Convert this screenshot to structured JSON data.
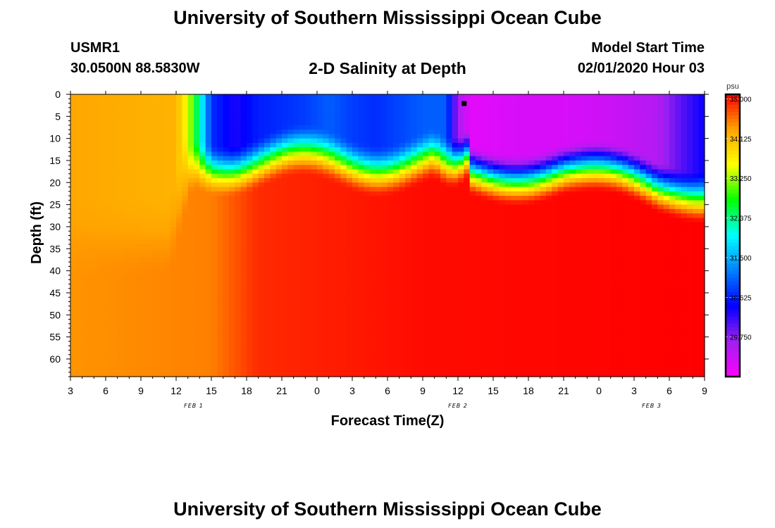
{
  "header": {
    "title": "University of Southern Mississippi Ocean Cube",
    "station_id": "USMR1",
    "coords": "30.0500N 88.5830W",
    "plot_title": "2-D Salinity at Depth",
    "model_label": "Model Start Time",
    "model_time": "02/01/2020 Hour 03"
  },
  "footer": {
    "title": "University of Southern Mississippi Ocean Cube"
  },
  "chart_data": {
    "type": "heatmap",
    "title": "2-D Salinity at Depth",
    "xlabel": "Forecast Time(Z)",
    "ylabel": "Depth (ft)",
    "x_ticks": [
      "3",
      "6",
      "9",
      "12",
      "15",
      "18",
      "21",
      "0",
      "3",
      "6",
      "9",
      "12",
      "15",
      "18",
      "21",
      "0",
      "3",
      "6",
      "9"
    ],
    "day_labels": [
      {
        "label": "FEB 1",
        "tick_index": 3.5
      },
      {
        "label": "FEB 2",
        "tick_index": 11
      },
      {
        "label": "FEB 3",
        "tick_index": 16.5
      }
    ],
    "y_ticks": [
      "0",
      "5",
      "10",
      "15",
      "20",
      "25",
      "30",
      "35",
      "40",
      "45",
      "50",
      "55",
      "60"
    ],
    "ylim": [
      0,
      64
    ],
    "forecast_hours": [
      0,
      54
    ],
    "colorbar": {
      "unit": "psu",
      "labels": [
        "35.000",
        "34.125",
        "33.250",
        "32.375",
        "31.500",
        "30.625",
        "29.750"
      ],
      "range": [
        28.875,
        35.1
      ],
      "colors": [
        "#ff00ff",
        "#a020f0",
        "#0000ff",
        "#0080ff",
        "#00ffff",
        "#00ff00",
        "#ffff00",
        "#ffa500",
        "#ff0000"
      ]
    },
    "surface_salinity_psu": {
      "forecast_hour": [
        0,
        9,
        10,
        11,
        12,
        14,
        16,
        20,
        22,
        24,
        26,
        30,
        32,
        33,
        34,
        38,
        42,
        46,
        50,
        52,
        54
      ],
      "values": [
        34.3,
        34.2,
        33.5,
        32.2,
        30.7,
        30.3,
        30.6,
        30.8,
        31.0,
        30.8,
        30.7,
        31.0,
        31.0,
        29.6,
        29.1,
        29.2,
        29.2,
        29.3,
        29.5,
        30.0,
        30.4
      ]
    },
    "deep_salinity_psu": {
      "forecast_hour": [
        0,
        12,
        16,
        30,
        54
      ],
      "values": [
        34.4,
        34.5,
        34.9,
        35.05,
        35.1
      ]
    },
    "observation_marker": {
      "forecast_hour": 33.5,
      "depth_ft": 2
    }
  }
}
